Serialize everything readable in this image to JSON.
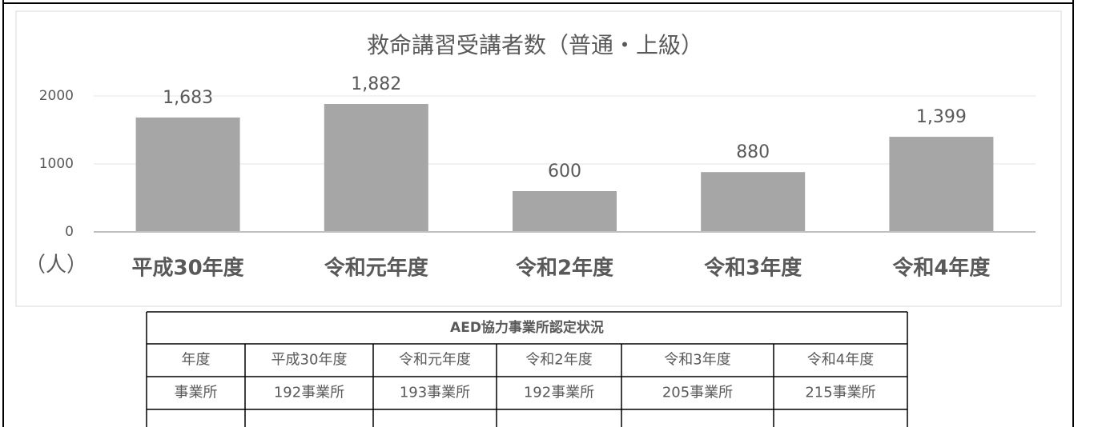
{
  "chart_data": {
    "type": "bar",
    "title": "救命講習受講者数（普通・上級）",
    "ylabel": "（人）",
    "categories": [
      "平成30年度",
      "令和元年度",
      "令和2年度",
      "令和3年度",
      "令和4年度"
    ],
    "values": [
      1683,
      1882,
      600,
      880,
      1399
    ],
    "value_labels": [
      "1,683",
      "1,882",
      "600",
      "880",
      "1,399"
    ],
    "color": "#a6a6a6",
    "ylim": [
      0,
      2000
    ],
    "yticks": [
      0,
      1000,
      2000
    ],
    "grid": true
  },
  "table": {
    "title": "AED協力事業所認定状況",
    "rows": [
      [
        "年度",
        "平成30年度",
        "令和元年度",
        "令和2年度",
        "令和3年度",
        "令和4年度"
      ],
      [
        "事業所",
        "192事業所",
        "193事業所",
        "192事業所",
        "205事業所",
        "215事業所"
      ]
    ]
  }
}
